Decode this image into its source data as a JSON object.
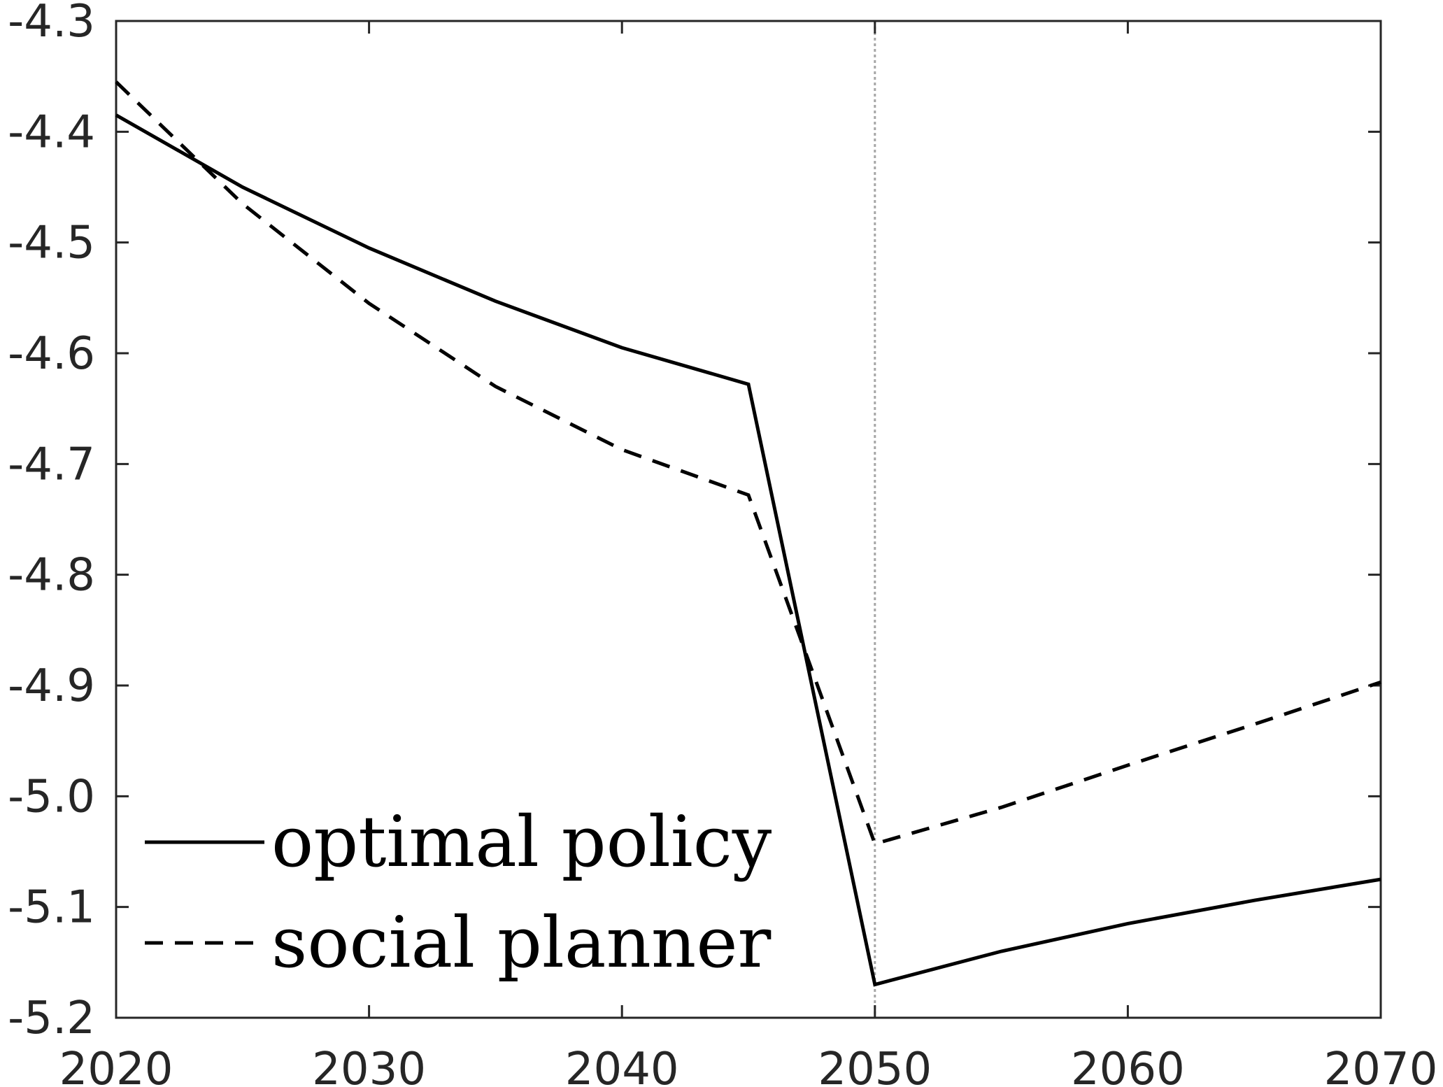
{
  "chart_data": {
    "type": "line",
    "title": "",
    "xlabel": "",
    "ylabel": "",
    "xlim": [
      2020,
      2070
    ],
    "ylim": [
      -5.2,
      -4.3
    ],
    "x_ticks": [
      2020,
      2030,
      2040,
      2050,
      2060,
      2070
    ],
    "y_ticks": [
      -4.3,
      -4.4,
      -4.5,
      -4.6,
      -4.7,
      -4.8,
      -4.9,
      -5.0,
      -5.1,
      -5.2
    ],
    "x_tick_labels": [
      "2020",
      "2030",
      "2040",
      "2050",
      "2060",
      "2070"
    ],
    "y_tick_labels": [
      "-4.3",
      "-4.4",
      "-4.5",
      "-4.6",
      "-4.7",
      "-4.8",
      "-4.9",
      "-5.0",
      "-5.1",
      "-5.2"
    ],
    "grid": false,
    "reference_line_x": 2050,
    "reference_line_color": "#a6a6a6",
    "legend_position": "bottom-left",
    "x": [
      2020,
      2025,
      2030,
      2035,
      2040,
      2045,
      2050,
      2055,
      2060,
      2065,
      2070
    ],
    "series": [
      {
        "name": "optimal policy",
        "style": "solid",
        "color": "#000000",
        "values": [
          -4.385,
          -4.45,
          -4.505,
          -4.553,
          -4.595,
          -4.628,
          -5.17,
          -5.14,
          -5.115,
          -5.094,
          -5.075
        ]
      },
      {
        "name": "social planner",
        "style": "dashed",
        "color": "#000000",
        "values": [
          -4.355,
          -4.465,
          -4.555,
          -4.63,
          -4.687,
          -4.728,
          -5.043,
          -5.01,
          -4.972,
          -4.935,
          -4.897
        ]
      }
    ]
  }
}
